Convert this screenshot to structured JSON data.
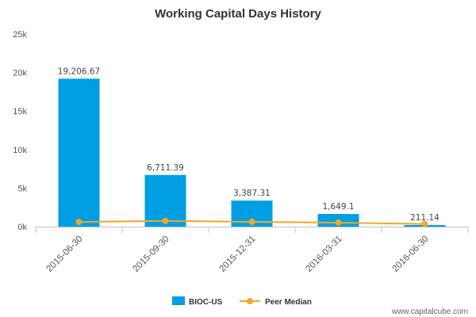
{
  "chart_data": {
    "type": "bar",
    "title": "Working Capital Days History",
    "categories": [
      "2015-06-30",
      "2015-09-30",
      "2015-12-31",
      "2016-03-31",
      "2016-06-30"
    ],
    "series": [
      {
        "name": "BIOC-US",
        "type": "bar",
        "values": [
          19206.67,
          6711.39,
          3387.31,
          1649.1,
          211.14
        ],
        "labels": [
          "19,206.67",
          "6,711.39",
          "3,387.31",
          "1,649.1",
          "211.14"
        ],
        "color": "#009fe3"
      },
      {
        "name": "Peer Median",
        "type": "line",
        "values": [
          600,
          750,
          620,
          520,
          350
        ],
        "color": "#f5a623"
      }
    ],
    "yticks": [
      {
        "value": 0,
        "label": "0k"
      },
      {
        "value": 5000,
        "label": "5k"
      },
      {
        "value": 10000,
        "label": "10k"
      },
      {
        "value": 15000,
        "label": "15k"
      },
      {
        "value": 20000,
        "label": "20k"
      },
      {
        "value": 25000,
        "label": "25k"
      }
    ],
    "ylim": [
      0,
      25000
    ],
    "grid": false,
    "legend_position": "bottom-center"
  },
  "source": "www.capitalcube.com"
}
